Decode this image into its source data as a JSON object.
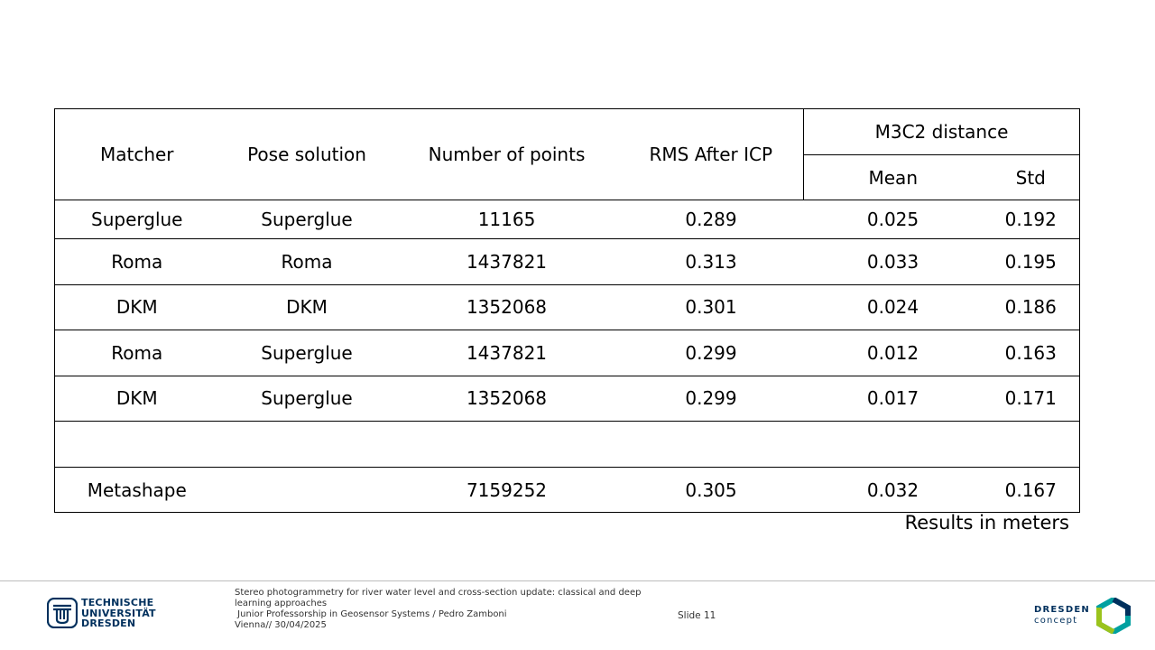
{
  "table": {
    "headers": {
      "matcher": "Matcher",
      "pose_solution": "Pose solution",
      "number_of_points": "Number of points",
      "rms_after_icp": "RMS After ICP",
      "m3c2_distance": "M3C2 distance",
      "mean": "Mean",
      "std": "Std"
    },
    "rows": [
      [
        "Superglue",
        "Superglue",
        "11165",
        "0.289",
        "0.025",
        "0.192"
      ],
      [
        "Roma",
        "Roma",
        "1437821",
        "0.313",
        "0.033",
        "0.195"
      ],
      [
        "DKM",
        "DKM",
        "1352068",
        "0.301",
        "0.024",
        "0.186"
      ],
      [
        "Roma",
        "Superglue",
        "1437821",
        "0.299",
        "0.012",
        "0.163"
      ],
      [
        "DKM",
        "Superglue",
        "1352068",
        "0.299",
        "0.017",
        "0.171"
      ],
      [
        "",
        "",
        "",
        "",
        "",
        ""
      ],
      [
        "Metashape",
        "",
        "7159252",
        "0.305",
        "0.032",
        "0.167"
      ]
    ]
  },
  "results_note": "Results in meters",
  "footer": {
    "logo_line1": "TECHNISCHE",
    "logo_line2": "UNIVERSITÄT",
    "logo_line3": "DRESDEN",
    "presentation_title": "Stereo photogrammetry for river water level and cross-section update: classical and deep learning approaches",
    "affiliation": " Junior Professorship in Geosensor Systems / Pedro Zamboni",
    "location_date": "Vienna// 30/04/2025",
    "slide_label": "Slide 11",
    "dresden_concept_line1": "DRESDEN",
    "dresden_concept_line2": "concept"
  },
  "colors": {
    "tud_blue": "#00305d",
    "concept_green": "#9bc31c",
    "concept_teal": "#00a0a0",
    "concept_navy": "#00305d"
  }
}
